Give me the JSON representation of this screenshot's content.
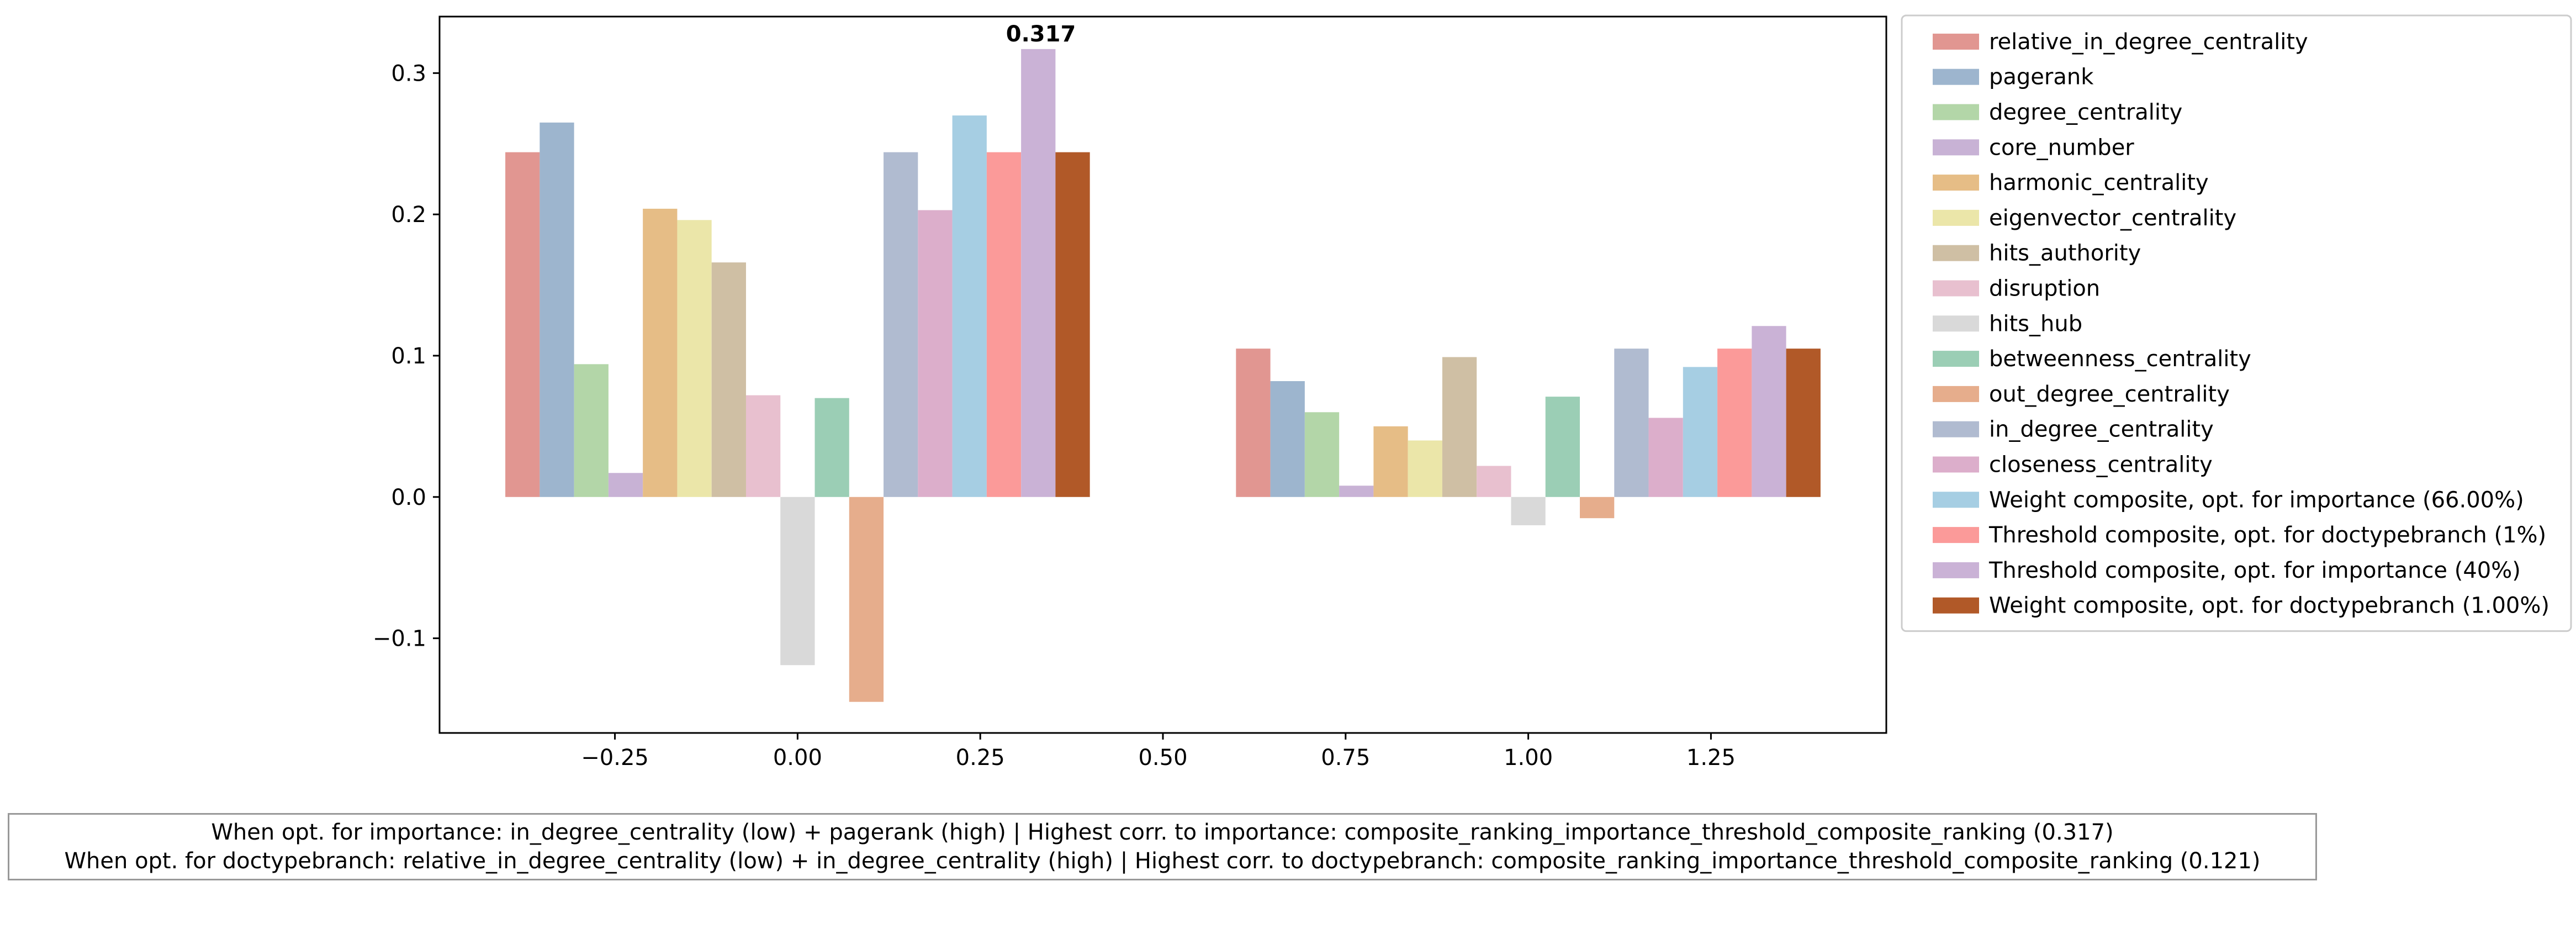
{
  "chart_data": {
    "type": "bar",
    "x": [
      0,
      1
    ],
    "xlim": [
      -0.49,
      1.49
    ],
    "ylim": [
      -0.167,
      0.34
    ],
    "xticks": [
      -0.25,
      0.0,
      0.25,
      0.5,
      0.75,
      1.0,
      1.25
    ],
    "xtick_labels": [
      "−0.25",
      "0.00",
      "0.25",
      "0.50",
      "0.75",
      "1.00",
      "1.25"
    ],
    "yticks": [
      -0.1,
      0.0,
      0.1,
      0.2,
      0.3
    ],
    "ytick_labels": [
      "−0.1",
      "0.0",
      "0.1",
      "0.2",
      "0.3"
    ],
    "grid": false,
    "legend_position": "outside-right",
    "series": [
      {
        "name": "relative_in_degree_centrality",
        "color": "#e19691",
        "values": [
          0.244,
          0.105
        ]
      },
      {
        "name": "pagerank",
        "color": "#9db5ce",
        "values": [
          0.265,
          0.082
        ]
      },
      {
        "name": "degree_centrality",
        "color": "#b3d6a8",
        "values": [
          0.094,
          0.06
        ]
      },
      {
        "name": "core_number",
        "color": "#c8b2d5",
        "values": [
          0.017,
          0.008
        ]
      },
      {
        "name": "harmonic_centrality",
        "color": "#e6bd86",
        "values": [
          0.204,
          0.05
        ]
      },
      {
        "name": "eigenvector_centrality",
        "color": "#ebe6a9",
        "values": [
          0.196,
          0.04
        ]
      },
      {
        "name": "hits_authority",
        "color": "#cfbfa4",
        "values": [
          0.166,
          0.099
        ]
      },
      {
        "name": "disruption",
        "color": "#e8c0cf",
        "values": [
          0.072,
          0.022
        ]
      },
      {
        "name": "hits_hub",
        "color": "#d9d9d9",
        "values": [
          -0.119,
          -0.02
        ]
      },
      {
        "name": "betweenness_centrality",
        "color": "#9bceb5",
        "values": [
          0.07,
          0.071
        ]
      },
      {
        "name": "out_degree_centrality",
        "color": "#e6ad8c",
        "values": [
          -0.145,
          -0.015
        ]
      },
      {
        "name": "in_degree_centrality",
        "color": "#b0bbd0",
        "values": [
          0.244,
          0.105
        ]
      },
      {
        "name": "closeness_centrality",
        "color": "#dcaecb",
        "values": [
          0.203,
          0.056
        ]
      },
      {
        "name": "Weight composite, opt. for importance (66.00%)",
        "color": "#a6cee3",
        "values": [
          0.27,
          0.092
        ]
      },
      {
        "name": "Threshold composite, opt. for doctypebranch (1%)",
        "color": "#fb9a99",
        "values": [
          0.244,
          0.105
        ]
      },
      {
        "name": "Threshold composite, opt. for importance (40%)",
        "color": "#cab2d6",
        "values": [
          0.317,
          0.121
        ]
      },
      {
        "name": "Weight composite, opt. for doctypebranch (1.00%)",
        "color": "#b15928",
        "values": [
          0.244,
          0.105
        ]
      }
    ],
    "annotations": [
      {
        "text": "0.317",
        "x": 0.333,
        "y": 0.317
      }
    ]
  },
  "caption": {
    "line1": "When opt. for importance: in_degree_centrality (low) + pagerank (high) | Highest corr. to importance: composite_ranking_importance_threshold_composite_ranking (0.317)",
    "line2": "When opt. for doctypebranch: relative_in_degree_centrality (low) + in_degree_centrality (high) | Highest corr. to doctypebranch: composite_ranking_importance_threshold_composite_ranking (0.121)"
  }
}
